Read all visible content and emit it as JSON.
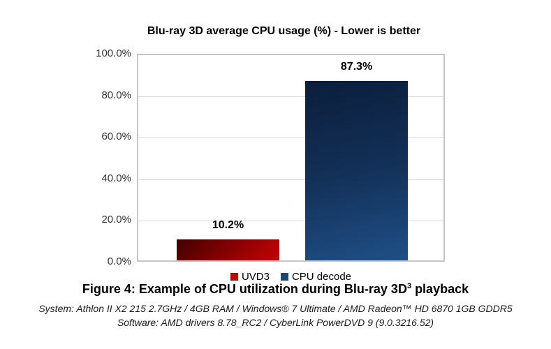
{
  "chart_data": {
    "type": "bar",
    "title": "Blu-ray 3D average CPU usage (%) - Lower is better",
    "categories": [
      "UVD3",
      "CPU decode"
    ],
    "values": [
      10.2,
      87.3
    ],
    "value_labels": [
      "10.2%",
      "87.3%"
    ],
    "xlabel": "",
    "ylabel": "",
    "ylim": [
      0,
      100
    ],
    "ytick_interval": 20,
    "yticks": [
      "100.0%",
      "80.0%",
      "60.0%",
      "40.0%",
      "20.0%",
      "0.0%"
    ],
    "grid": true,
    "legend_position": "bottom",
    "series_colors": [
      "#c00000",
      "#1c4877"
    ],
    "bar_gradients": [
      {
        "top": "#420000",
        "bottom": "#c40404"
      },
      {
        "top": "#0b1e3c",
        "bottom": "#1f4f86"
      }
    ]
  },
  "caption": {
    "text": "Figure 4: Example of CPU utilization during Blu-ray 3D",
    "superscript": "3",
    "suffix": " playback"
  },
  "footer": {
    "system_line": "System: Athlon II X2 215 2.7GHz / 4GB RAM / Windows® 7 Ultimate / AMD Radeon™ HD 6870 1GB GDDR5",
    "software_line": "Software: AMD drivers 8.78_RC2 / CyberLink PowerDVD 9 (9.0.3216.52)"
  }
}
